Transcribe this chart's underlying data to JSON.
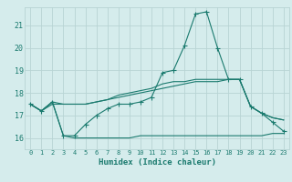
{
  "title": "",
  "xlabel": "Humidex (Indice chaleur)",
  "background_color": "#d5ecec",
  "grid_color": "#b8d4d4",
  "line_color": "#1a7a6e",
  "xlim": [
    -0.5,
    23.5
  ],
  "ylim": [
    15.5,
    21.8
  ],
  "yticks": [
    16,
    17,
    18,
    19,
    20,
    21
  ],
  "xticks": [
    0,
    1,
    2,
    3,
    4,
    5,
    6,
    7,
    8,
    9,
    10,
    11,
    12,
    13,
    14,
    15,
    16,
    17,
    18,
    19,
    20,
    21,
    22,
    23
  ],
  "line1_x": [
    0,
    1,
    2,
    3,
    4,
    5,
    6,
    7,
    8,
    9,
    10,
    11,
    12,
    13,
    14,
    15,
    16,
    17,
    18,
    19,
    20,
    21,
    22,
    23
  ],
  "line1_y": [
    17.5,
    17.2,
    17.6,
    16.1,
    16.1,
    16.6,
    17.0,
    17.3,
    17.5,
    17.5,
    17.6,
    17.8,
    18.9,
    19.0,
    20.1,
    21.5,
    21.6,
    20.0,
    18.6,
    18.6,
    17.4,
    17.1,
    16.7,
    16.3
  ],
  "line2_x": [
    0,
    1,
    2,
    3,
    4,
    5,
    6,
    7,
    8,
    9,
    10,
    11,
    12,
    13,
    14,
    15,
    16,
    17,
    18,
    19,
    20,
    21,
    22,
    23
  ],
  "line2_y": [
    17.5,
    17.2,
    17.6,
    16.1,
    16.0,
    16.0,
    16.0,
    16.0,
    16.0,
    16.0,
    16.1,
    16.1,
    16.1,
    16.1,
    16.1,
    16.1,
    16.1,
    16.1,
    16.1,
    16.1,
    16.1,
    16.1,
    16.2,
    16.2
  ],
  "line3_x": [
    0,
    1,
    2,
    3,
    4,
    5,
    6,
    7,
    8,
    9,
    10,
    11,
    12,
    13,
    14,
    15,
    16,
    17,
    18,
    19,
    20,
    21,
    22,
    23
  ],
  "line3_y": [
    17.5,
    17.2,
    17.6,
    17.5,
    17.5,
    17.5,
    17.6,
    17.7,
    17.8,
    17.9,
    18.0,
    18.1,
    18.2,
    18.3,
    18.4,
    18.5,
    18.5,
    18.5,
    18.6,
    18.6,
    17.4,
    17.1,
    16.9,
    16.8
  ],
  "line4_x": [
    0,
    1,
    2,
    3,
    4,
    5,
    6,
    7,
    8,
    9,
    10,
    11,
    12,
    13,
    14,
    15,
    16,
    17,
    18,
    19,
    20,
    21,
    22,
    23
  ],
  "line4_y": [
    17.5,
    17.2,
    17.5,
    17.5,
    17.5,
    17.5,
    17.6,
    17.7,
    17.9,
    18.0,
    18.1,
    18.2,
    18.4,
    18.5,
    18.5,
    18.6,
    18.6,
    18.6,
    18.6,
    18.6,
    17.4,
    17.1,
    16.9,
    16.8
  ]
}
